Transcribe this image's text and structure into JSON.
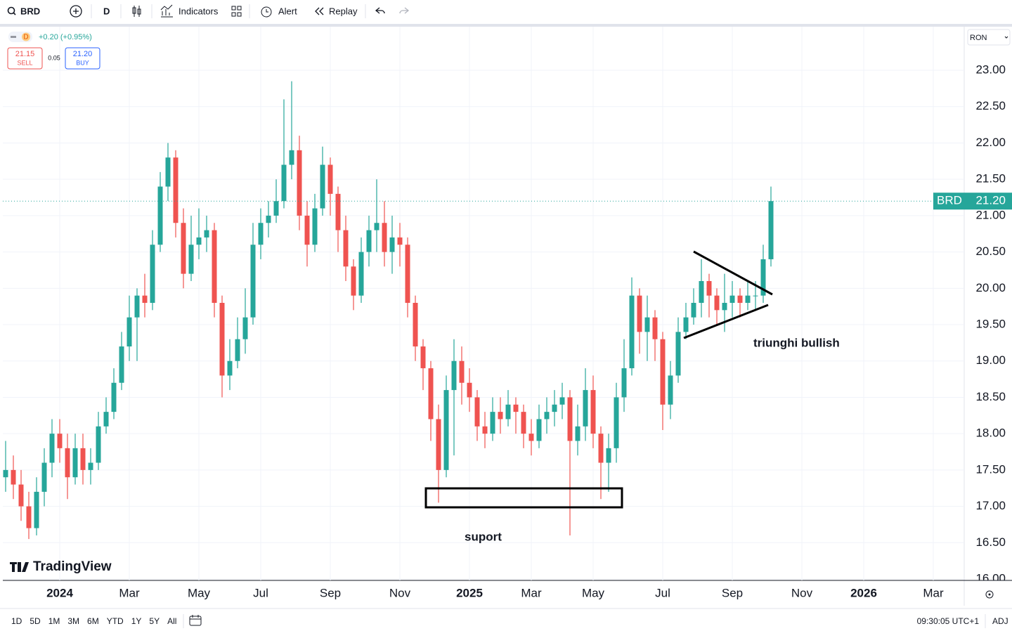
{
  "toolbar": {
    "symbol": "BRD",
    "interval": "D",
    "indicators": "Indicators",
    "alert": "Alert",
    "replay": "Replay"
  },
  "legend": {
    "interval": "D",
    "change": "+0.20 (+0.95%)",
    "sell_price": "21.15",
    "sell": "SELL",
    "spread": "0.05",
    "buy_price": "21.20",
    "buy": "BUY"
  },
  "currency": "RON",
  "chart_data": {
    "type": "candlestick",
    "categories": [
      null,
      null,
      null,
      null,
      null,
      null,
      null,
      "2024",
      null,
      null,
      null,
      null,
      null,
      null,
      null,
      null,
      "Mar",
      null,
      null,
      null,
      null,
      null,
      null,
      null,
      null,
      "May",
      null,
      null,
      null,
      null,
      null,
      null,
      null,
      "Jul",
      null,
      null,
      null,
      null,
      null,
      null,
      null,
      null,
      "Sep",
      null,
      null,
      null,
      null,
      null,
      null,
      null,
      null,
      "Nov",
      null,
      null,
      null,
      null,
      null,
      null,
      null,
      null,
      "2025",
      null,
      null,
      null,
      null,
      null,
      null,
      null,
      "Mar",
      null,
      null,
      null,
      null,
      null,
      null,
      null,
      "May",
      null,
      null,
      null,
      null,
      null,
      null,
      null,
      null,
      "Jul",
      null,
      null,
      null,
      null,
      null,
      null,
      null,
      null,
      "Sep",
      null,
      null,
      null,
      null,
      null,
      null,
      null,
      null,
      "Nov",
      null,
      null,
      null,
      null,
      null,
      null,
      null,
      "2026",
      null,
      null,
      null,
      null,
      null,
      null,
      null,
      null,
      "Mar",
      null,
      null,
      null
    ],
    "open": [
      17.4,
      17.5,
      17.3,
      17.0,
      16.7,
      17.2,
      17.6,
      18.0,
      17.8,
      17.4,
      17.8,
      17.5,
      17.6,
      18.1,
      18.3,
      18.7,
      19.2,
      19.6,
      19.9,
      19.8,
      20.6,
      21.4,
      21.8,
      20.9,
      20.2,
      20.6,
      20.7,
      20.8,
      19.8,
      18.8,
      19.0,
      19.3,
      19.6,
      20.6,
      20.9,
      21.0,
      21.2,
      21.7,
      21.9,
      21.0,
      20.6,
      21.1,
      21.7,
      21.3,
      20.8,
      20.3,
      19.9,
      20.5,
      20.8,
      20.9,
      20.5,
      20.7,
      20.6,
      19.8,
      19.2,
      18.9,
      18.2,
      17.5,
      18.6,
      19.0,
      18.7,
      18.5,
      18.1,
      18.0,
      18.3,
      18.2,
      18.4,
      18.3,
      18.0,
      17.9,
      18.2,
      18.3,
      18.4,
      18.5,
      17.9,
      18.1,
      18.6,
      18.0,
      17.6,
      17.8,
      18.5,
      18.9,
      19.9,
      19.4,
      19.6,
      19.3,
      18.4,
      18.8,
      19.4,
      19.6,
      19.8,
      20.1,
      19.9,
      19.7,
      19.8,
      19.9,
      19.8,
      19.9,
      19.9,
      20.4,
      null,
      null,
      null,
      null,
      null,
      null,
      null,
      null,
      null,
      null,
      null,
      null,
      null,
      null,
      null,
      null,
      null,
      null,
      null,
      null,
      null,
      null,
      null,
      null
    ],
    "high": [
      17.9,
      17.7,
      17.5,
      17.2,
      17.4,
      17.8,
      18.2,
      18.2,
      18.0,
      18.0,
      18.0,
      17.8,
      18.3,
      18.5,
      18.9,
      19.4,
      19.9,
      20.0,
      20.2,
      20.8,
      21.6,
      22.0,
      21.9,
      21.1,
      21.0,
      21.1,
      21.0,
      20.9,
      19.9,
      19.3,
      19.6,
      20.0,
      20.9,
      21.1,
      21.2,
      21.5,
      22.6,
      22.85,
      22.1,
      21.2,
      21.3,
      21.95,
      21.8,
      21.4,
      21.0,
      20.4,
      20.7,
      21.0,
      21.5,
      21.2,
      21.0,
      20.9,
      20.7,
      19.9,
      19.3,
      19.0,
      18.4,
      18.8,
      19.3,
      19.2,
      18.9,
      18.6,
      18.3,
      18.5,
      18.5,
      18.6,
      18.5,
      18.4,
      18.2,
      18.4,
      18.5,
      18.6,
      18.7,
      18.6,
      18.4,
      18.9,
      18.8,
      18.1,
      18.0,
      18.7,
      19.3,
      20.15,
      20.0,
      19.9,
      19.7,
      19.4,
      19.0,
      19.6,
      19.8,
      20.0,
      20.4,
      20.2,
      20.0,
      20.2,
      20.1,
      20.0,
      20.1,
      20.1,
      20.6,
      21.4,
      null,
      null,
      null,
      null,
      null,
      null,
      null,
      null,
      null,
      null,
      null,
      null,
      null,
      null,
      null,
      null,
      null,
      null,
      null,
      null,
      null,
      null,
      null,
      null
    ],
    "low": [
      17.2,
      17.1,
      16.8,
      16.55,
      16.6,
      17.0,
      17.4,
      17.6,
      17.1,
      17.3,
      17.3,
      17.3,
      17.5,
      18.0,
      18.2,
      18.6,
      19.0,
      19.0,
      19.6,
      19.7,
      20.5,
      21.2,
      20.7,
      20.0,
      20.1,
      20.4,
      20.5,
      19.6,
      18.5,
      18.6,
      18.9,
      19.1,
      19.5,
      20.4,
      20.7,
      20.9,
      21.1,
      21.5,
      20.8,
      20.3,
      20.5,
      21.0,
      21.0,
      20.5,
      20.1,
      19.7,
      19.8,
      20.3,
      20.5,
      20.3,
      20.2,
      20.3,
      19.6,
      19.0,
      18.6,
      17.9,
      17.05,
      17.4,
      17.7,
      18.4,
      18.3,
      17.9,
      17.8,
      17.9,
      18.0,
      18.1,
      18.0,
      17.8,
      17.7,
      17.8,
      18.0,
      18.1,
      18.2,
      16.6,
      17.7,
      17.9,
      17.8,
      17.1,
      17.2,
      17.6,
      18.3,
      18.8,
      19.1,
      19.0,
      19.0,
      18.05,
      18.2,
      18.7,
      19.3,
      19.5,
      19.6,
      19.6,
      19.5,
      19.4,
      19.6,
      19.6,
      19.7,
      19.7,
      19.8,
      20.3,
      null,
      null,
      null,
      null,
      null,
      null,
      null,
      null,
      null,
      null,
      null,
      null,
      null,
      null,
      null,
      null,
      null,
      null,
      null,
      null,
      null,
      null,
      null,
      null
    ],
    "close": [
      17.5,
      17.3,
      17.0,
      16.7,
      17.2,
      17.6,
      18.0,
      17.8,
      17.4,
      17.8,
      17.5,
      17.6,
      18.1,
      18.3,
      18.7,
      19.2,
      19.6,
      19.9,
      19.8,
      20.6,
      21.4,
      21.8,
      20.9,
      20.2,
      20.6,
      20.7,
      20.8,
      19.8,
      18.8,
      19.0,
      19.3,
      19.6,
      20.6,
      20.9,
      21.0,
      21.2,
      21.7,
      21.9,
      21.0,
      20.6,
      21.1,
      21.7,
      21.3,
      20.8,
      20.3,
      19.9,
      20.5,
      20.8,
      20.9,
      20.5,
      20.7,
      20.6,
      19.8,
      19.2,
      18.9,
      18.2,
      17.5,
      18.6,
      19.0,
      18.7,
      18.5,
      18.1,
      18.0,
      18.3,
      18.2,
      18.4,
      18.3,
      18.0,
      17.9,
      18.2,
      18.3,
      18.4,
      18.5,
      17.9,
      18.1,
      18.6,
      18.0,
      17.6,
      17.8,
      18.5,
      18.9,
      19.9,
      19.4,
      19.6,
      19.3,
      18.4,
      18.8,
      19.4,
      19.6,
      19.8,
      20.1,
      19.9,
      19.7,
      19.8,
      19.9,
      19.8,
      19.9,
      19.9,
      20.4,
      21.2,
      null,
      null,
      null,
      null,
      null,
      null,
      null,
      null,
      null,
      null,
      null,
      null,
      null,
      null,
      null,
      null,
      null,
      null,
      null,
      null,
      null,
      null,
      null,
      null
    ],
    "up_color": "#26a69a",
    "down_color": "#ef5350",
    "ylim": [
      16.0,
      23.6
    ],
    "yticks": [
      {
        "value": 16,
        "label": "16.00"
      },
      {
        "value": 16.5,
        "label": "16.50"
      },
      {
        "value": 17,
        "label": "17.00"
      },
      {
        "value": 17.5,
        "label": "17.50"
      },
      {
        "value": 18,
        "label": "18.00"
      },
      {
        "value": 18.5,
        "label": "18.50"
      },
      {
        "value": 19,
        "label": "19.00"
      },
      {
        "value": 19.5,
        "label": "19.50"
      },
      {
        "value": 20,
        "label": "20.00"
      },
      {
        "value": 20.5,
        "label": "20.50"
      },
      {
        "value": 21,
        "label": "21.00"
      },
      {
        "value": 21.5,
        "label": "21.50"
      },
      {
        "value": 22,
        "label": "22.00"
      },
      {
        "value": 22.5,
        "label": "22.50"
      },
      {
        "value": 23,
        "label": "23.00"
      }
    ],
    "grid": true,
    "symbol_label": "BRD",
    "last_price_label": "21.20",
    "annotations": {
      "triangle": "triunghi bullish",
      "support": "suport"
    }
  },
  "watermark": "TradingView",
  "ranges": [
    "1D",
    "5D",
    "1M",
    "3M",
    "6M",
    "YTD",
    "1Y",
    "5Y",
    "All"
  ],
  "clock": "09:30:05 UTC+1",
  "adj": "ADJ"
}
